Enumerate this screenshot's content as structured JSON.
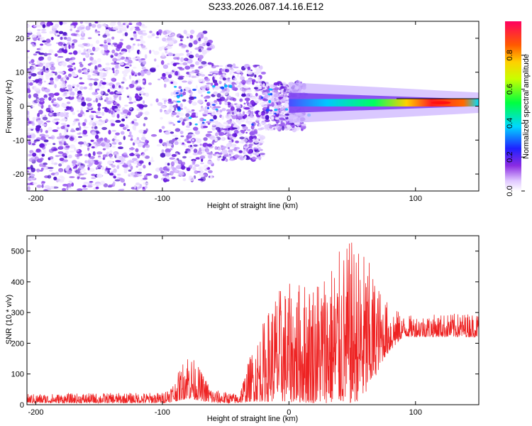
{
  "title": "S233.2026.087.14.16.E12",
  "colors": {
    "spec_low": "#e8d9ff",
    "spec_mid": "#6a1fe0",
    "snr_line": "#ee2222"
  },
  "chart_data": [
    {
      "type": "heatmap",
      "name": "spectrogram",
      "xlabel": "Height of straight line (km)",
      "ylabel": "Frequency (Hz)",
      "xlim": [
        -207,
        150
      ],
      "ylim": [
        -25,
        25
      ],
      "xticks": [
        -200,
        -100,
        0,
        100
      ],
      "yticks": [
        -20,
        -10,
        0,
        10,
        20
      ],
      "xtick_labels": [
        "-200",
        "-100",
        "0",
        "100"
      ],
      "ytick_labels": [
        "-20",
        "-10",
        "0",
        "10",
        "20"
      ],
      "ridge": {
        "x_start": 0,
        "x_end": 150,
        "frequency": 1,
        "peak_x": 120
      },
      "colorbar": {
        "label": "Normalized spectral amplitude",
        "range": [
          0,
          1
        ],
        "ticks": [
          0.0,
          0.2,
          0.4,
          0.6,
          0.8
        ],
        "tick_labels": [
          "0.0",
          "0.2",
          "0.4",
          "0.6",
          "0.8"
        ]
      }
    },
    {
      "type": "line",
      "name": "snr",
      "xlabel": "Height of straight line (km)",
      "ylabel": "SNR (10 * v/v)",
      "xlim": [
        -207,
        150
      ],
      "ylim": [
        0,
        550
      ],
      "xticks": [
        -200,
        -100,
        0,
        100
      ],
      "yticks": [
        0,
        100,
        200,
        300,
        400,
        500
      ],
      "xtick_labels": [
        "-200",
        "-100",
        "0",
        "100"
      ],
      "ytick_labels": [
        "0",
        "100",
        "200",
        "300",
        "400",
        "500"
      ],
      "envelope": [
        {
          "x": -207,
          "low": 5,
          "high": 35
        },
        {
          "x": -100,
          "low": 5,
          "high": 40
        },
        {
          "x": -90,
          "low": 10,
          "high": 80
        },
        {
          "x": -80,
          "low": 20,
          "high": 180
        },
        {
          "x": -60,
          "low": 5,
          "high": 50
        },
        {
          "x": -40,
          "low": 5,
          "high": 35
        },
        {
          "x": -30,
          "low": 10,
          "high": 170
        },
        {
          "x": -10,
          "low": 10,
          "high": 380
        },
        {
          "x": 20,
          "low": 5,
          "high": 420
        },
        {
          "x": 50,
          "low": 5,
          "high": 540
        },
        {
          "x": 60,
          "low": 20,
          "high": 500
        },
        {
          "x": 75,
          "low": 150,
          "high": 350
        },
        {
          "x": 90,
          "low": 220,
          "high": 290
        },
        {
          "x": 150,
          "low": 220,
          "high": 300
        }
      ]
    }
  ]
}
